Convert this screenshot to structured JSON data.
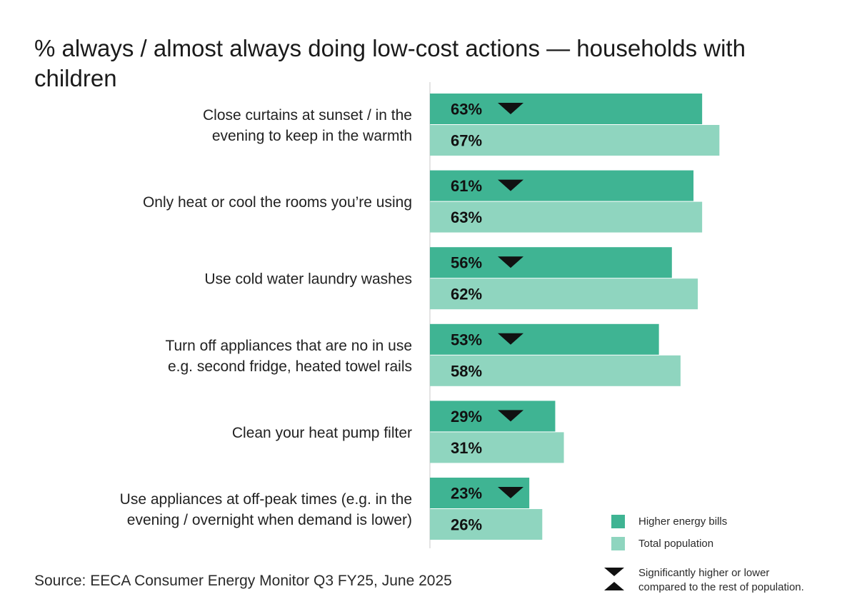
{
  "colors": {
    "higher": "#3fb493",
    "total": "#8fd5bf",
    "marker": "#111111",
    "axis": "#c9c9c9"
  },
  "chart_data": {
    "type": "bar",
    "orientation": "horizontal",
    "title": "% always / almost always doing low-cost actions — households with children",
    "categories": [
      "Close curtains at sunset / in the\nevening to keep in the warmth",
      "Only heat or cool the rooms you’re using",
      "Use cold water laundry washes",
      "Turn off appliances that are no in use\ne.g. second fridge, heated towel rails",
      "Clean your heat pump filter",
      "Use appliances at off-peak times (e.g. in the\nevening / overnight when demand is lower)"
    ],
    "series": [
      {
        "name": "Higher energy bills",
        "values": [
          63,
          61,
          56,
          53,
          29,
          23
        ],
        "labels": [
          "63%",
          "61%",
          "56%",
          "53%",
          "29%",
          "23%"
        ],
        "significance": [
          "lower",
          "lower",
          "lower",
          "lower",
          "lower",
          "lower"
        ]
      },
      {
        "name": "Total population",
        "values": [
          67,
          63,
          62,
          58,
          31,
          26
        ],
        "labels": [
          "67%",
          "63%",
          "62%",
          "58%",
          "31%",
          "26%"
        ]
      }
    ],
    "xlim": [
      0,
      100
    ],
    "legend_position": "bottom-right"
  },
  "legend": {
    "items": [
      {
        "label": "Higher energy bills",
        "color_key": "higher"
      },
      {
        "label": "Total population",
        "color_key": "total"
      }
    ],
    "significance_note": {
      "line1": "Significantly higher or lower",
      "line2": "compared to the rest of population."
    }
  },
  "source": "Source: EECA Consumer Energy Monitor Q3 FY25, June 2025"
}
